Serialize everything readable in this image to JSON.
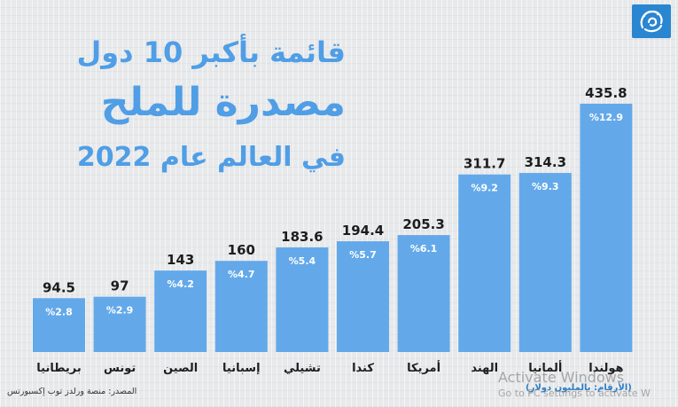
{
  "title_lines": [
    "قائمة بأكبر 10 دول",
    "مصدرة للملح",
    "في العالم عام 2022"
  ],
  "source_text": "المصدر: منصة ورلدز توب إكسبورتس",
  "units_note": "(الأرقام: بالمليون دولار)",
  "watermark": {
    "line1": "Activate Windows",
    "line2": "Go to PC settings to activate W"
  },
  "colors": {
    "bar": "#63a9ea",
    "title": "#4f9ee6",
    "value": "#1d1d1d",
    "percent": "#ffffff"
  },
  "logo": {
    "icon": "al-jazeera-logo-icon"
  },
  "chart_data": {
    "type": "bar",
    "categories": [
      "بريطانيا",
      "تونس",
      "الصين",
      "إسبانيا",
      "تشيلي",
      "كندا",
      "أمريكا",
      "الهند",
      "ألمانيا",
      "هولندا"
    ],
    "values": [
      94.5,
      97,
      143,
      160,
      183.6,
      194.4,
      205.3,
      311.7,
      314.3,
      435.8
    ],
    "value_labels": [
      "94.5",
      "97",
      "143",
      "160",
      "183.6",
      "194.4",
      "205.3",
      "311.7",
      "314.3",
      "435.8"
    ],
    "percent_labels": [
      "%2.8",
      "%2.9",
      "%4.2",
      "%4.7",
      "%5.4",
      "%5.7",
      "%6.1",
      "%9.2",
      "%9.3",
      "%12.9"
    ],
    "title": "قائمة بأكبر 10 دول مصدرة للملح في العالم عام 2022",
    "xlabel": "",
    "ylabel": "",
    "grid": false,
    "legend": "none"
  }
}
